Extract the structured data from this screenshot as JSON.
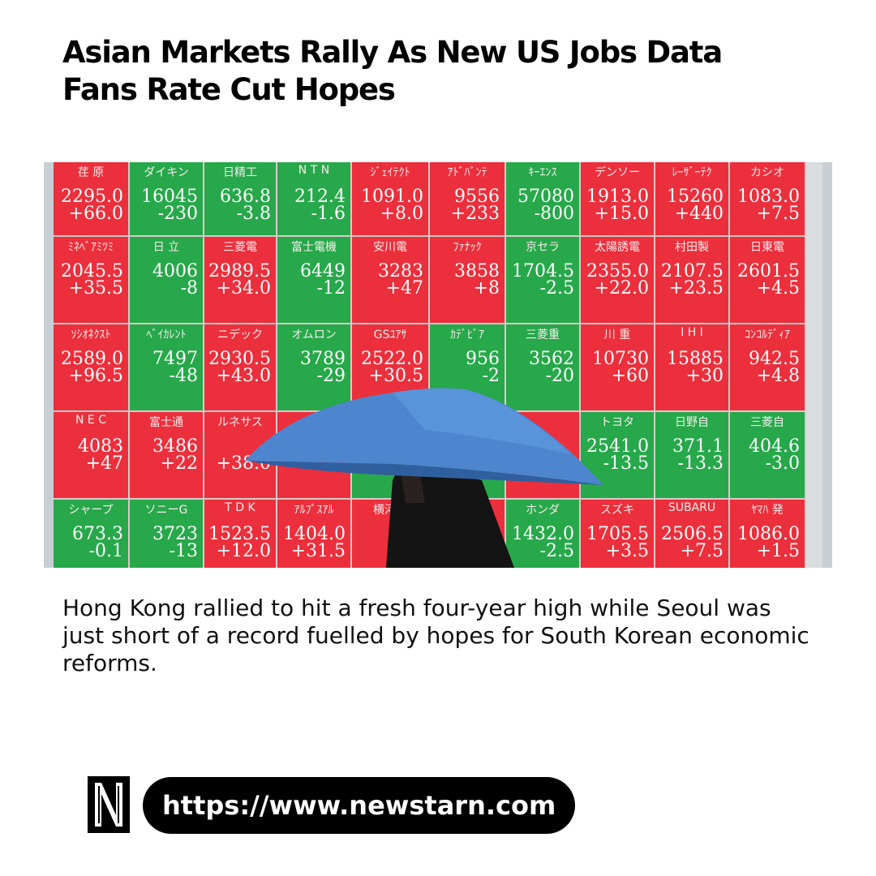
{
  "headline": "Asian Markets Rally As New US Jobs Data Fans Rate Cut Hopes",
  "caption": "Hong Kong rallied to hit a fresh four-year high while Seoul was just short of a record fuelled by hopes for South Korean economic reforms.",
  "source_url": "https://www.newstarn.com",
  "logo_icon": "newstarn-n-logo-icon",
  "colors": {
    "up": "#ec2f3c",
    "down": "#27a84a",
    "text": "#111111",
    "pill": "#000000"
  },
  "board": {
    "rows": [
      [
        {
          "name": "荏 原",
          "price": "2295.0",
          "change": "+66.0",
          "color": "red"
        },
        {
          "name": "ダイキン",
          "price": "16045",
          "change": "-230",
          "color": "green"
        },
        {
          "name": "日精工",
          "price": "636.8",
          "change": "-3.8",
          "color": "green"
        },
        {
          "name": "N T N",
          "price": "212.4",
          "change": "-1.6",
          "color": "green"
        },
        {
          "name": "ｼﾞｪｲﾃｸﾄ",
          "price": "1091.0",
          "change": "+8.0",
          "color": "red"
        },
        {
          "name": "ｱﾄﾞﾊﾞﾝﾃ",
          "price": "9556",
          "change": "+233",
          "color": "red"
        },
        {
          "name": "ｷｰｴﾝｽ",
          "price": "57080",
          "change": "-800",
          "color": "green"
        },
        {
          "name": "デンソー",
          "price": "1913.0",
          "change": "+15.0",
          "color": "red"
        },
        {
          "name": "ﾚｰｻﾞｰﾃｸ",
          "price": "15260",
          "change": "+440",
          "color": "red"
        },
        {
          "name": "カシオ",
          "price": "1083.0",
          "change": "+7.5",
          "color": "red"
        }
      ],
      [
        {
          "name": "ﾐﾈﾍﾞｱﾐﾂﾐ",
          "price": "2045.5",
          "change": "+35.5",
          "color": "red"
        },
        {
          "name": "日 立",
          "price": "4006",
          "change": "-8",
          "color": "green"
        },
        {
          "name": "三菱電",
          "price": "2989.5",
          "change": "+34.0",
          "color": "red"
        },
        {
          "name": "富士電機",
          "price": "6449",
          "change": "-12",
          "color": "green"
        },
        {
          "name": "安川電",
          "price": "3283",
          "change": "+47",
          "color": "red"
        },
        {
          "name": "ﾌｧﾅｯｸ",
          "price": "3858",
          "change": "+8",
          "color": "red"
        },
        {
          "name": "京セラ",
          "price": "1704.5",
          "change": "-2.5",
          "color": "green"
        },
        {
          "name": "太陽誘電",
          "price": "2355.0",
          "change": "+22.0",
          "color": "red"
        },
        {
          "name": "村田製",
          "price": "2107.5",
          "change": "+23.5",
          "color": "red"
        },
        {
          "name": "日東電",
          "price": "2601.5",
          "change": "+4.5",
          "color": "red"
        }
      ],
      [
        {
          "name": "ｿｼｵﾈｸｽﾄ",
          "price": "2589.0",
          "change": "+96.5",
          "color": "red"
        },
        {
          "name": "ﾍﾞｲｶﾚﾝﾄ",
          "price": "7497",
          "change": "-48",
          "color": "green"
        },
        {
          "name": "ニデック",
          "price": "2930.5",
          "change": "+43.0",
          "color": "red"
        },
        {
          "name": "オムロン",
          "price": "3789",
          "change": "-29",
          "color": "green"
        },
        {
          "name": "GSﾕｱｻ",
          "price": "2522.0",
          "change": "+30.5",
          "color": "red"
        },
        {
          "name": "ｶﾃﾞﾋﾞｱ",
          "price": "956",
          "change": "-2",
          "color": "green"
        },
        {
          "name": "三菱重",
          "price": "3562",
          "change": "-20",
          "color": "green"
        },
        {
          "name": "川 重",
          "price": "10730",
          "change": "+60",
          "color": "red"
        },
        {
          "name": "I H I",
          "price": "15885",
          "change": "+30",
          "color": "red"
        },
        {
          "name": "ｺﾝｺﾙﾃﾞｨｱ",
          "price": "942.5",
          "change": "+4.8",
          "color": "red"
        }
      ],
      [
        {
          "name": "N E C",
          "price": "4083",
          "change": "+47",
          "color": "red"
        },
        {
          "name": "富士通",
          "price": "3486",
          "change": "+22",
          "color": "red"
        },
        {
          "name": "ルネサス",
          "price": "",
          "change": "+38.0",
          "color": "red"
        },
        {
          "name": "",
          "price": "",
          "change": "",
          "color": "red"
        },
        {
          "name": "",
          "price": "",
          "change": "",
          "color": "green"
        },
        {
          "name": "",
          "price": "",
          "change": "",
          "color": "green"
        },
        {
          "name": "",
          "price": "",
          "change": "",
          "color": "red"
        },
        {
          "name": "トヨタ",
          "price": "2541.0",
          "change": "-13.5",
          "color": "green"
        },
        {
          "name": "日野自",
          "price": "371.1",
          "change": "-13.3",
          "color": "green"
        },
        {
          "name": "三菱自",
          "price": "404.6",
          "change": "-3.0",
          "color": "green"
        }
      ],
      [
        {
          "name": "シャープ",
          "price": "673.3",
          "change": "-0.1",
          "color": "green"
        },
        {
          "name": "ソニーG",
          "price": "3723",
          "change": "-13",
          "color": "green"
        },
        {
          "name": "T D K",
          "price": "1523.5",
          "change": "+12.0",
          "color": "red"
        },
        {
          "name": "ｱﾙﾌﾟｽｱﾙ",
          "price": "1404.0",
          "change": "+31.5",
          "color": "red"
        },
        {
          "name": "横河電",
          "price": "",
          "change": "",
          "color": "red"
        },
        {
          "name": "",
          "price": "",
          "change": "",
          "color": "red"
        },
        {
          "name": "ホンダ",
          "price": "1432.0",
          "change": "-2.5",
          "color": "green"
        },
        {
          "name": "スズキ",
          "price": "1705.5",
          "change": "+3.5",
          "color": "red"
        },
        {
          "name": "SUBARU",
          "price": "2506.5",
          "change": "+7.5",
          "color": "red"
        },
        {
          "name": "ﾔﾏﾊ 発",
          "price": "1086.0",
          "change": "+1.5",
          "color": "red"
        }
      ]
    ]
  }
}
